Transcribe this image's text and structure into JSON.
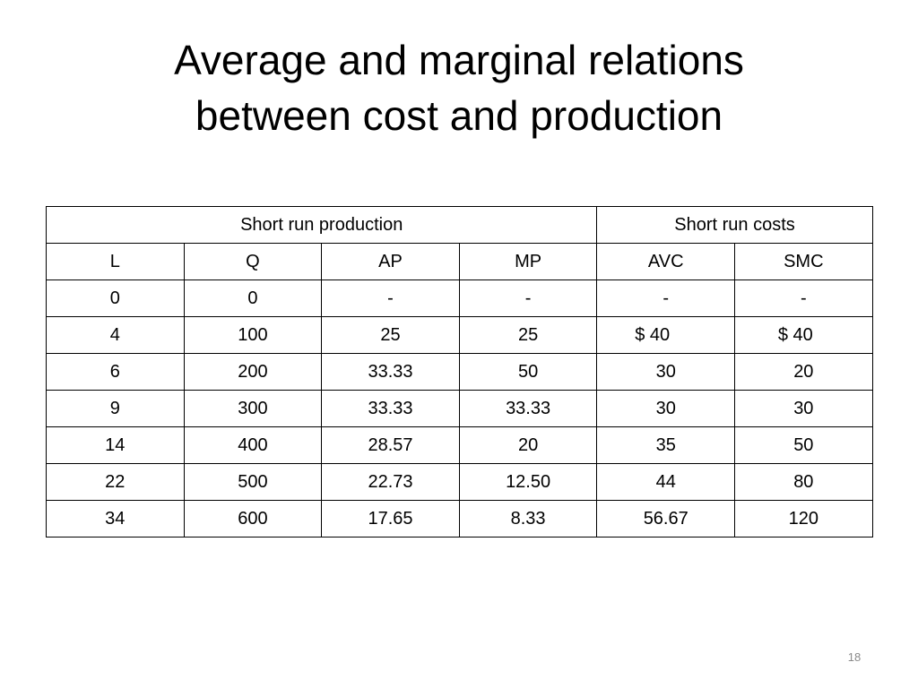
{
  "slide": {
    "title_line_1": "Average and marginal relations",
    "title_line_2": "between cost and production",
    "number": "18"
  },
  "table": {
    "group_headers": [
      "Short run production",
      "Short run costs"
    ],
    "columns": [
      "L",
      "Q",
      "AP",
      "MP",
      "AVC",
      "SMC"
    ],
    "rows": [
      [
        "0",
        "0",
        "-",
        "-",
        "-",
        "-"
      ],
      [
        "4",
        "100",
        "25",
        "25",
        "$ 40",
        "$ 40"
      ],
      [
        "6",
        "200",
        "33.33",
        "50",
        "30",
        "20"
      ],
      [
        "9",
        "300",
        "33.33",
        "33.33",
        "30",
        "30"
      ],
      [
        "14",
        "400",
        "28.57",
        "20",
        "35",
        "50"
      ],
      [
        "22",
        "500",
        "22.73",
        "12.50",
        "44",
        "80"
      ],
      [
        "34",
        "600",
        "17.65",
        "8.33",
        "56.67",
        "120"
      ]
    ]
  }
}
